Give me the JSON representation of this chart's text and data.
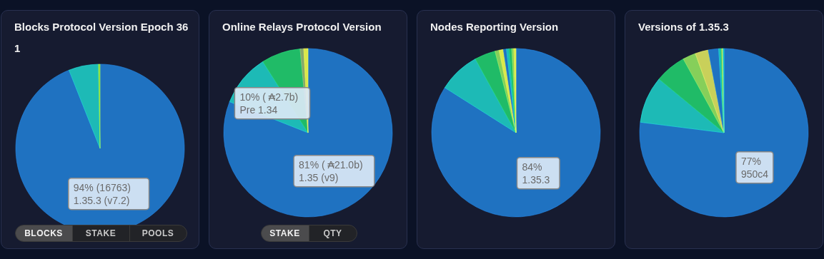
{
  "chart_data": [
    {
      "type": "pie",
      "title": "Blocks Protocol Version Epoch 361",
      "categories": [
        "1.35.3 (v7.2)",
        null,
        null
      ],
      "values": [
        94,
        5.7,
        0.3
      ],
      "colors": [
        "#1f72c1",
        "#1dbab6",
        "#8bd43c"
      ],
      "value_labels": [
        "94% (16763)",
        null,
        null
      ],
      "annotations": [
        "BLOCKS",
        "STAKE",
        "POOLS"
      ]
    },
    {
      "type": "pie",
      "title": "Online Relays Protocol Version",
      "categories": [
        "1.35 (v9)",
        "Pre 1.34",
        null,
        null,
        null
      ],
      "values": [
        81,
        10,
        7.5,
        0.7,
        0.8
      ],
      "colors": [
        "#1f72c1",
        "#1dbab6",
        "#20bb67",
        "#86a86a",
        "#d9e84a"
      ],
      "value_labels": [
        "81% ( ₳21.0b)",
        "10% ( ₳2.7b)",
        null,
        null,
        null
      ],
      "annotations": [
        "STAKE",
        "QTY"
      ]
    },
    {
      "type": "pie",
      "title": "Nodes Reporting Version",
      "categories": [
        "1.35.3",
        null,
        null,
        null,
        null,
        null,
        null,
        null,
        null,
        null
      ],
      "values": [
        84,
        8,
        4,
        0.8,
        0.8,
        0.6,
        0.5,
        0.5,
        0.4,
        0.4
      ],
      "colors": [
        "#1f72c1",
        "#1dbab6",
        "#20bb67",
        "#86cf5a",
        "#d9e84a",
        "#1f72c1",
        "#1dbab6",
        "#20bb67",
        "#86cf5a",
        "#d9e84a"
      ],
      "value_labels": [
        "84%",
        null,
        null,
        null,
        null,
        null,
        null,
        null,
        null,
        null
      ]
    },
    {
      "type": "pie",
      "title": "Versions of 1.35.3",
      "categories": [
        "950c4",
        null,
        null,
        null,
        null,
        null,
        null,
        null,
        null,
        null
      ],
      "values": [
        77,
        9,
        6,
        2.5,
        2.5,
        2,
        0.4,
        0.2,
        0.2,
        0.2
      ],
      "colors": [
        "#1f72c1",
        "#1dbab6",
        "#20bb67",
        "#86cf5a",
        "#c9d05a",
        "#1f72c1",
        "#1dbab6",
        "#20bb67",
        "#d9e84a",
        "#1dbab6"
      ],
      "value_labels": [
        "77%",
        null,
        null,
        null,
        null,
        null,
        null,
        null,
        null,
        null
      ]
    }
  ]
}
